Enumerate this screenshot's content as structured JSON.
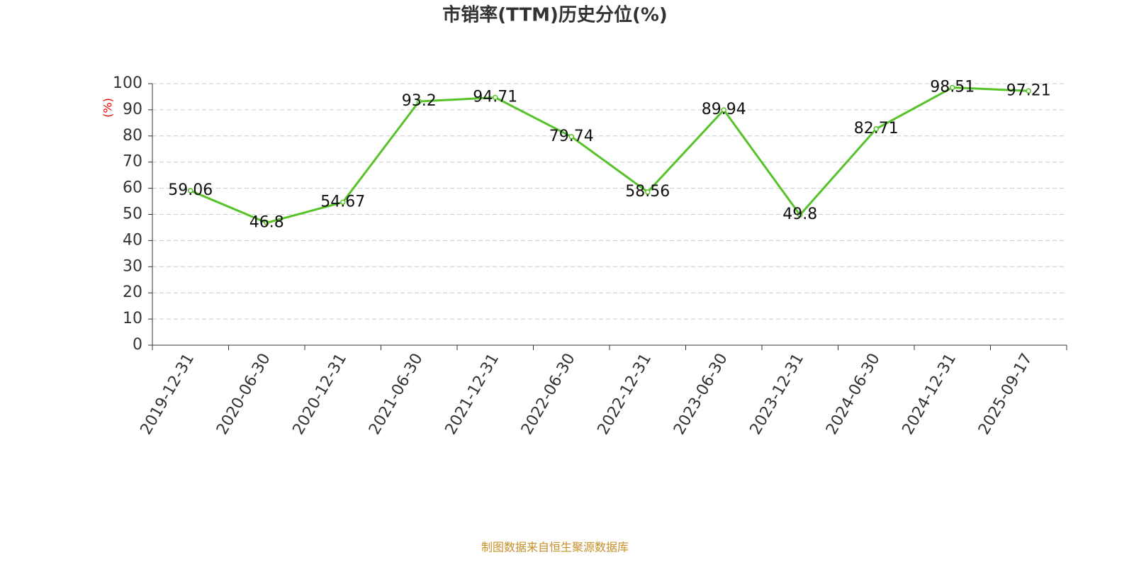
{
  "chart_data": {
    "type": "line",
    "title": "市销率(TTM)历史分位(%)",
    "y_label": "(%)",
    "categories": [
      "2019-12-31",
      "2020-06-30",
      "2020-12-31",
      "2021-06-30",
      "2021-12-31",
      "2022-06-30",
      "2022-12-31",
      "2023-06-30",
      "2023-12-31",
      "2024-06-30",
      "2024-12-31",
      "2025-09-17"
    ],
    "values": [
      59.06,
      46.8,
      54.67,
      93.2,
      94.71,
      79.74,
      58.56,
      89.94,
      49.8,
      82.71,
      98.51,
      97.21
    ],
    "color": "#58c22a",
    "ylim": [
      0,
      100
    ],
    "yticks": [
      0,
      10,
      20,
      30,
      40,
      50,
      60,
      70,
      80,
      90,
      100
    ],
    "grid": true,
    "source": "制图数据来自恒生聚源数据库"
  }
}
